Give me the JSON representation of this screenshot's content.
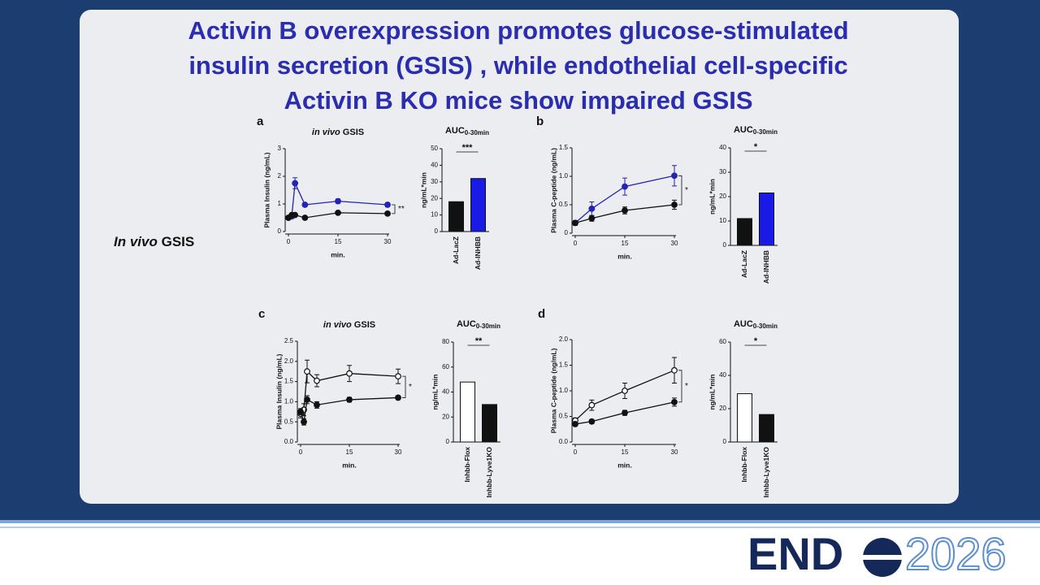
{
  "slide": {
    "title_lines": [
      "Activin B overexpression promotes glucose-stimulated",
      "insulin secretion (GSIS) , while endothelial cell-specific",
      "Activin B KO mice show impaired GSIS"
    ],
    "side_label": [
      "In vivo",
      "GSIS"
    ]
  },
  "logo": {
    "brand": "END",
    "year": "2026"
  },
  "chart_data": [
    {
      "type": "line",
      "panel": "a",
      "title": [
        "in vivo",
        "GSIS"
      ],
      "ylabel": "Plasma Insulin (ng/mL)",
      "xlabel": "min.",
      "annotation": "**",
      "x": [
        0,
        1,
        2,
        5,
        15,
        30
      ],
      "xlim": [
        0,
        30
      ],
      "xticks": [
        0,
        15,
        30
      ],
      "ylim": [
        0,
        3
      ],
      "yticks": [
        0,
        1,
        2,
        3
      ],
      "series": [
        {
          "color": "#2323b4",
          "fill": "#2323b4",
          "values": [
            0.5,
            0.55,
            1.75,
            0.97,
            1.1,
            0.97
          ],
          "errors": [
            0.05,
            0.08,
            0.2,
            0.06,
            0.08,
            0.07
          ]
        },
        {
          "color": "#111111",
          "fill": "#111111",
          "values": [
            0.5,
            0.6,
            0.6,
            0.5,
            0.68,
            0.65
          ],
          "errors": [
            0.04,
            0.05,
            0.05,
            0.03,
            0.04,
            0.04
          ]
        }
      ]
    },
    {
      "type": "bar",
      "title": "AUC",
      "title_sub": "0-30min",
      "ylabel": "ng/mL*min",
      "annotation": "***",
      "categories": [
        "Ad-LacZ",
        "Ad-INHBB"
      ],
      "values": [
        18,
        32
      ],
      "colors": [
        "#111111",
        "#1a1ae6"
      ],
      "ylim": [
        0,
        50
      ],
      "yticks": [
        0,
        10,
        20,
        30,
        40,
        50
      ]
    },
    {
      "type": "line",
      "panel": "b",
      "ylabel": "Plasma C-peptide (ng/mL)",
      "xlabel": "min.",
      "annotation": "*",
      "x": [
        0,
        5,
        15,
        30
      ],
      "xlim": [
        0,
        30
      ],
      "xticks": [
        0,
        15,
        30
      ],
      "ylim": [
        0,
        1.5
      ],
      "yticks": [
        0,
        0.5,
        {
          "value": 1,
          "label": "1.0"
        },
        1.5
      ],
      "series": [
        {
          "color": "#2323b4",
          "fill": "#2323b4",
          "values": [
            0.18,
            0.43,
            0.82,
            1.01
          ],
          "errors": [
            0.04,
            0.12,
            0.15,
            0.18
          ]
        },
        {
          "color": "#111111",
          "fill": "#111111",
          "values": [
            0.18,
            0.26,
            0.4,
            0.5
          ],
          "errors": [
            0.04,
            0.05,
            0.06,
            0.08
          ]
        }
      ]
    },
    {
      "type": "bar",
      "title": "AUC",
      "title_sub": "0-30min",
      "ylabel": "ng/mL*min",
      "annotation": "*",
      "categories": [
        "Ad-LacZ",
        "Ad-INHBB"
      ],
      "values": [
        11,
        21.5
      ],
      "colors": [
        "#111111",
        "#1a1ae6"
      ],
      "ylim": [
        0,
        40
      ],
      "yticks": [
        0,
        10,
        20,
        30,
        40
      ]
    },
    {
      "type": "line",
      "panel": "c",
      "title": [
        "in vivo",
        "GSIS"
      ],
      "ylabel": "Plasma Insulin (ng/mL)",
      "xlabel": "min.",
      "annotation": "*",
      "x": [
        0,
        1,
        2,
        5,
        15,
        30
      ],
      "xlim": [
        0,
        30
      ],
      "xticks": [
        0,
        15,
        30
      ],
      "ylim": [
        0,
        2.5
      ],
      "yticks": [
        {
          "value": 0,
          "label": "0.0"
        },
        0.5,
        {
          "value": 1,
          "label": "1.0"
        },
        1.5,
        {
          "value": 2,
          "label": "2.0"
        },
        2.5
      ],
      "series": [
        {
          "color": "#111111",
          "fill": "#ffffff",
          "values": [
            0.7,
            0.8,
            1.75,
            1.52,
            1.7,
            1.63
          ],
          "errors": [
            0.1,
            0.15,
            0.28,
            0.15,
            0.2,
            0.18
          ]
        },
        {
          "color": "#111111",
          "fill": "#111111",
          "values": [
            0.75,
            0.5,
            1.05,
            0.92,
            1.05,
            1.1
          ],
          "errors": [
            0.08,
            0.08,
            0.1,
            0.08,
            0.06,
            0.05
          ]
        }
      ]
    },
    {
      "type": "bar",
      "title": "AUC",
      "title_sub": "0-30min",
      "ylabel": "ng/mL*min",
      "annotation": "**",
      "categories": [
        "Inhbb-Flox",
        "Inhbb-Lyve1KO"
      ],
      "values": [
        48,
        30
      ],
      "colors": [
        "#ffffff",
        "#111111"
      ],
      "ylim": [
        0,
        80
      ],
      "yticks": [
        0,
        20,
        40,
        60,
        80
      ]
    },
    {
      "type": "line",
      "panel": "d",
      "ylabel": "Plasma C-peptide (ng/mL)",
      "xlabel": "min.",
      "annotation": "*",
      "x": [
        0,
        5,
        15,
        30
      ],
      "xlim": [
        0,
        30
      ],
      "xticks": [
        0,
        15,
        30
      ],
      "ylim": [
        0,
        2
      ],
      "yticks": [
        {
          "value": 0,
          "label": "0.0"
        },
        0.5,
        {
          "value": 1,
          "label": "1.0"
        },
        1.5,
        {
          "value": 2,
          "label": "2.0"
        }
      ],
      "series": [
        {
          "color": "#111111",
          "fill": "#ffffff",
          "values": [
            0.42,
            0.72,
            1.0,
            1.4
          ],
          "errors": [
            0.05,
            0.1,
            0.15,
            0.25
          ]
        },
        {
          "color": "#111111",
          "fill": "#111111",
          "values": [
            0.35,
            0.4,
            0.57,
            0.78
          ],
          "errors": [
            0.04,
            0.04,
            0.05,
            0.08
          ]
        }
      ]
    },
    {
      "type": "bar",
      "title": "AUC",
      "title_sub": "0-30min",
      "ylabel": "ng/mL*min",
      "annotation": "*",
      "categories": [
        "Inhbb-Flox",
        "Inhbb-Lyve1KO"
      ],
      "values": [
        29,
        16.5
      ],
      "colors": [
        "#ffffff",
        "#111111"
      ],
      "ylim": [
        0,
        60
      ],
      "yticks": [
        0,
        20,
        40,
        60
      ]
    }
  ]
}
